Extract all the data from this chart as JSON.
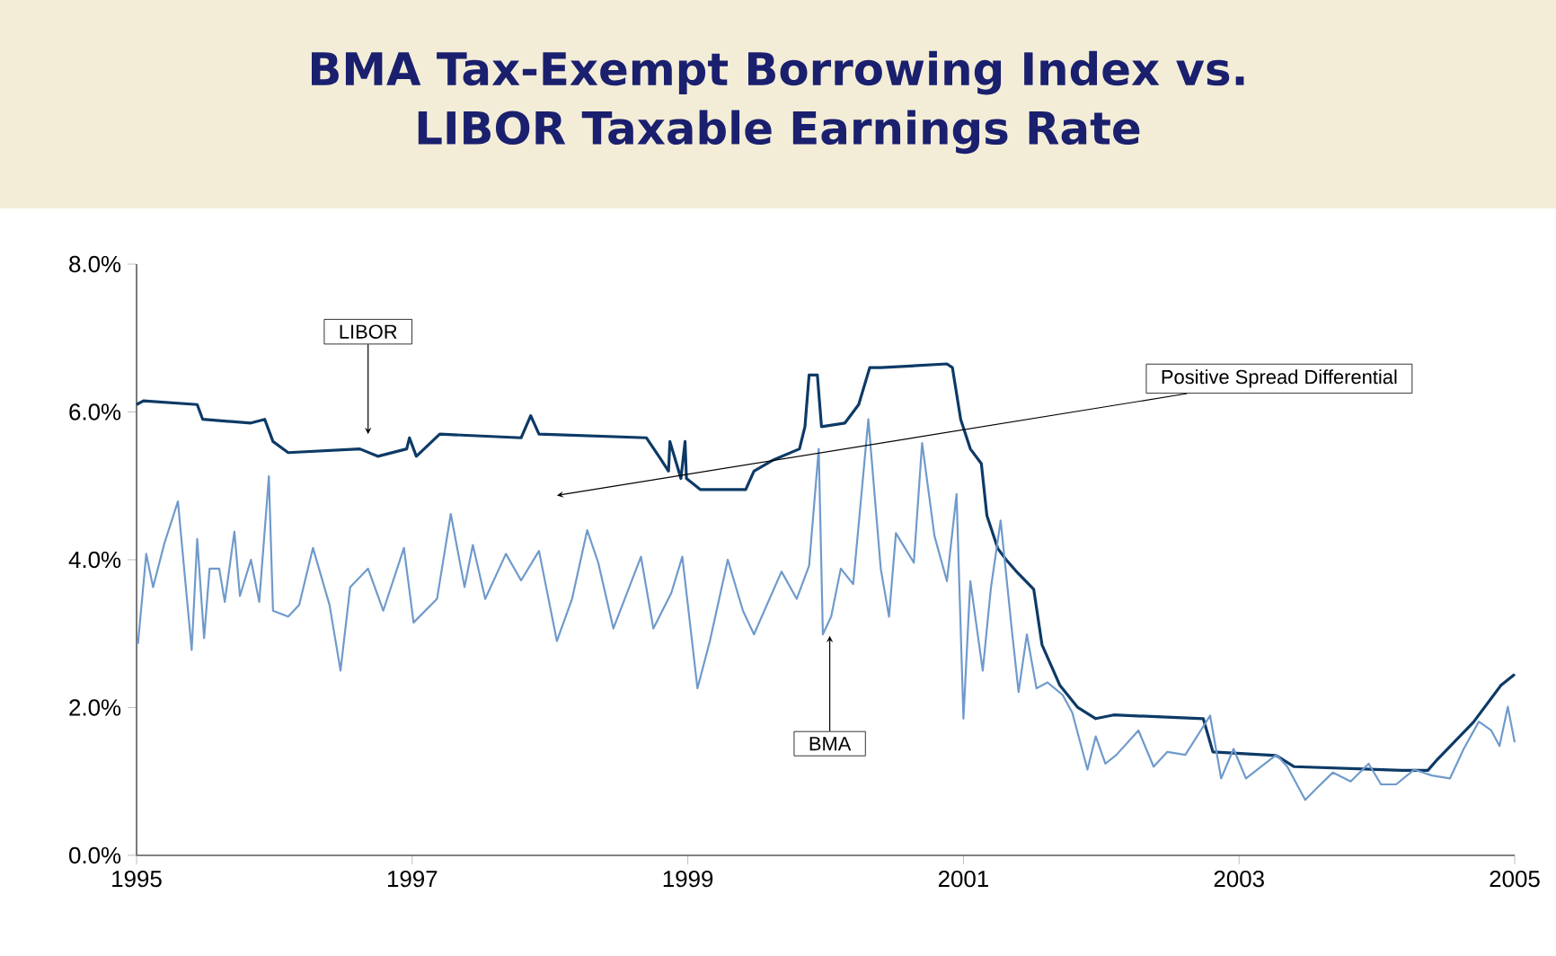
{
  "chart_data": {
    "type": "line",
    "title": "BMA Tax-Exempt Borrowing Index vs. LIBOR Taxable Earnings Rate",
    "xlim": [
      1995,
      2005
    ],
    "xticks": [
      1995,
      1997,
      1999,
      2001,
      2003,
      2005
    ],
    "ylim": [
      0,
      8
    ],
    "yticks": [
      {
        "value": 0,
        "label": "0.0%"
      },
      {
        "value": 2,
        "label": "2.0%"
      },
      {
        "value": 4,
        "label": "4.0%"
      },
      {
        "value": 6,
        "label": "6.0%"
      },
      {
        "value": 8,
        "label": "8.0%"
      }
    ],
    "series": [
      {
        "color": "#0d3a66",
        "x": [
          1995.0,
          1995.05,
          1995.44,
          1995.48,
          1995.83,
          1995.93,
          1995.99,
          1996.1,
          1996.62,
          1996.75,
          1996.96,
          1996.98,
          1997.03,
          1997.2,
          1997.79,
          1997.86,
          1997.92,
          1998.7,
          1998.79,
          1998.86,
          1998.87,
          1998.95,
          1998.98,
          1998.99,
          1999.09,
          1999.42,
          1999.48,
          1999.62,
          1999.81,
          1999.85,
          1999.88,
          1999.94,
          1999.97,
          2000.14,
          2000.24,
          2000.32,
          2000.4,
          2000.88,
          2000.92,
          2000.98,
          2001.05,
          2001.13,
          2001.17,
          2001.25,
          2001.31,
          2001.38,
          2001.51,
          2001.57,
          2001.7,
          2001.83,
          2001.96,
          2002.09,
          2002.74,
          2002.81,
          2003.27,
          2003.4,
          2004.18,
          2004.37,
          2004.44,
          2004.7,
          2004.9,
          2005.0
        ],
        "values": [
          6.1,
          6.15,
          6.1,
          5.9,
          5.85,
          5.9,
          5.6,
          5.45,
          5.5,
          5.4,
          5.5,
          5.65,
          5.4,
          5.7,
          5.65,
          5.95,
          5.7,
          5.65,
          5.4,
          5.2,
          5.6,
          5.1,
          5.6,
          5.1,
          4.95,
          4.95,
          5.2,
          5.35,
          5.5,
          5.8,
          6.5,
          6.5,
          5.8,
          5.85,
          6.1,
          6.6,
          6.6,
          6.65,
          6.6,
          5.9,
          5.5,
          5.3,
          4.6,
          4.15,
          4.0,
          3.85,
          3.6,
          2.85,
          2.3,
          2.0,
          1.85,
          1.9,
          1.85,
          1.4,
          1.35,
          1.2,
          1.15,
          1.15,
          1.3,
          1.8,
          2.3,
          2.45
        ]
      },
      {
        "color": "#6f9acb",
        "x": [
          1995.01,
          1995.07,
          1995.12,
          1995.2,
          1995.3,
          1995.4,
          1995.44,
          1995.49,
          1995.53,
          1995.6,
          1995.64,
          1995.71,
          1995.75,
          1995.83,
          1995.89,
          1995.96,
          1995.99,
          1996.1,
          1996.18,
          1996.28,
          1996.4,
          1996.48,
          1996.55,
          1996.68,
          1996.79,
          1996.94,
          1997.01,
          1997.18,
          1997.28,
          1997.38,
          1997.44,
          1997.53,
          1997.68,
          1997.79,
          1997.92,
          1998.05,
          1998.16,
          1998.27,
          1998.35,
          1998.46,
          1998.66,
          1998.75,
          1998.88,
          1998.96,
          1999.07,
          1999.16,
          1999.29,
          1999.4,
          1999.48,
          1999.68,
          1999.79,
          1999.88,
          1999.95,
          1999.98,
          2000.04,
          2000.11,
          2000.2,
          2000.31,
          2000.4,
          2000.46,
          2000.51,
          2000.64,
          2000.7,
          2000.79,
          2000.88,
          2000.95,
          2001.0,
          2001.05,
          2001.14,
          2001.2,
          2001.27,
          2001.35,
          2001.4,
          2001.46,
          2001.53,
          2001.61,
          2001.72,
          2001.79,
          2001.9,
          2001.96,
          2002.03,
          2002.11,
          2002.27,
          2002.38,
          2002.48,
          2002.61,
          2002.79,
          2002.87,
          2002.96,
          2003.05,
          2003.27,
          2003.35,
          2003.48,
          2003.57,
          2003.68,
          2003.81,
          2003.94,
          2004.03,
          2004.14,
          2004.27,
          2004.4,
          2004.53,
          2004.63,
          2004.74,
          2004.83,
          2004.89,
          2004.95,
          2005.0
        ],
        "values": [
          2.86,
          4.08,
          3.63,
          4.21,
          4.79,
          2.78,
          4.28,
          2.94,
          3.88,
          3.88,
          3.43,
          4.38,
          3.51,
          4.0,
          3.43,
          5.13,
          3.31,
          3.23,
          3.39,
          4.16,
          3.39,
          2.5,
          3.63,
          3.88,
          3.31,
          4.16,
          3.15,
          3.47,
          4.62,
          3.63,
          4.2,
          3.47,
          4.08,
          3.72,
          4.12,
          2.9,
          3.47,
          4.4,
          3.96,
          3.07,
          4.04,
          3.07,
          3.55,
          4.04,
          2.26,
          2.9,
          4.0,
          3.31,
          2.99,
          3.84,
          3.47,
          3.92,
          5.5,
          2.99,
          3.23,
          3.88,
          3.67,
          5.9,
          3.88,
          3.23,
          4.36,
          3.96,
          5.58,
          4.32,
          3.71,
          4.89,
          1.85,
          3.71,
          2.5,
          3.63,
          4.53,
          3.07,
          2.21,
          2.99,
          2.26,
          2.34,
          2.17,
          1.93,
          1.16,
          1.61,
          1.24,
          1.36,
          1.69,
          1.2,
          1.4,
          1.36,
          1.89,
          1.04,
          1.44,
          1.04,
          1.36,
          1.2,
          0.75,
          0.92,
          1.12,
          1.0,
          1.24,
          0.96,
          0.96,
          1.16,
          1.08,
          1.04,
          1.44,
          1.81,
          1.69,
          1.48,
          2.01,
          1.53
        ]
      }
    ],
    "annotations": [
      {
        "text": "LIBOR",
        "x": 1996.68,
        "y": 5.7
      },
      {
        "text": "BMA",
        "x": 2000.03,
        "y": 2.97
      },
      {
        "text": "Positive Spread Differential",
        "x": 1998.05,
        "y": 4.87
      }
    ]
  }
}
